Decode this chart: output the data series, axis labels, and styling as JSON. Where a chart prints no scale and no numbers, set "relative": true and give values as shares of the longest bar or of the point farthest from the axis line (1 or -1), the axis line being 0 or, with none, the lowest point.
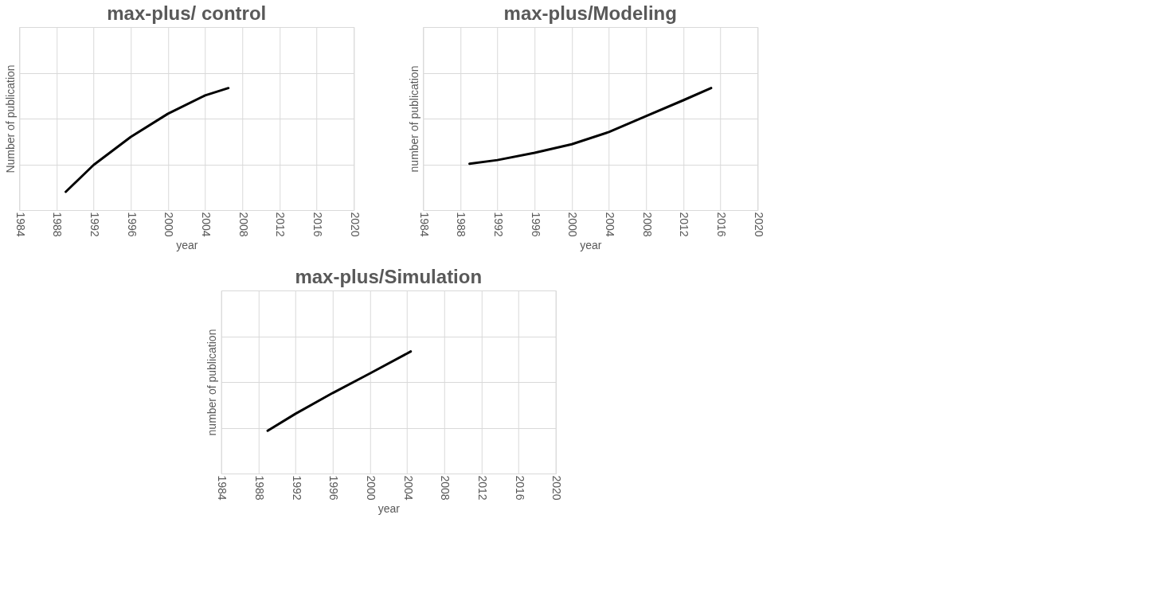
{
  "chart_data": [
    {
      "type": "line",
      "title": "max-plus/ control",
      "xlabel": "year",
      "ylabel": "Number of publication",
      "relative": true,
      "grid": true,
      "line_style": "solid",
      "xlim": [
        1984,
        2020
      ],
      "xticks": [
        1984,
        1988,
        1992,
        1996,
        2000,
        2004,
        2008,
        2012,
        2016,
        2020
      ],
      "series": [
        {
          "color": "#000000",
          "x": [
            1989,
            1992,
            1996,
            2000,
            2004,
            2006.5
          ],
          "values": [
            0.15,
            0.37,
            0.6,
            0.79,
            0.94,
            1.0
          ]
        }
      ]
    },
    {
      "type": "line",
      "title": "max-plus/Modeling",
      "xlabel": "year",
      "ylabel": "number of publication",
      "relative": true,
      "grid": true,
      "line_style": "solid",
      "xlim": [
        1984,
        2020
      ],
      "xticks": [
        1984,
        1988,
        1992,
        1996,
        2000,
        2004,
        2008,
        2012,
        2016,
        2020
      ],
      "series": [
        {
          "color": "#000000",
          "x": [
            1989,
            1992,
            1996,
            2000,
            2004,
            2008,
            2012,
            2015
          ],
          "values": [
            0.38,
            0.41,
            0.47,
            0.54,
            0.64,
            0.77,
            0.9,
            1.0
          ]
        }
      ]
    },
    {
      "type": "line",
      "title": "max-plus/Simulation",
      "xlabel": "year",
      "ylabel": "number of publication",
      "relative": true,
      "grid": true,
      "line_style": "solid",
      "xlim": [
        1984,
        2020
      ],
      "xticks": [
        1984,
        1988,
        1992,
        1996,
        2000,
        2004,
        2008,
        2012,
        2016,
        2020
      ],
      "series": [
        {
          "color": "#000000",
          "x": [
            1989,
            1992,
            1996,
            2000,
            2004.4
          ],
          "values": [
            0.35,
            0.49,
            0.66,
            0.82,
            1.0
          ]
        }
      ]
    }
  ]
}
